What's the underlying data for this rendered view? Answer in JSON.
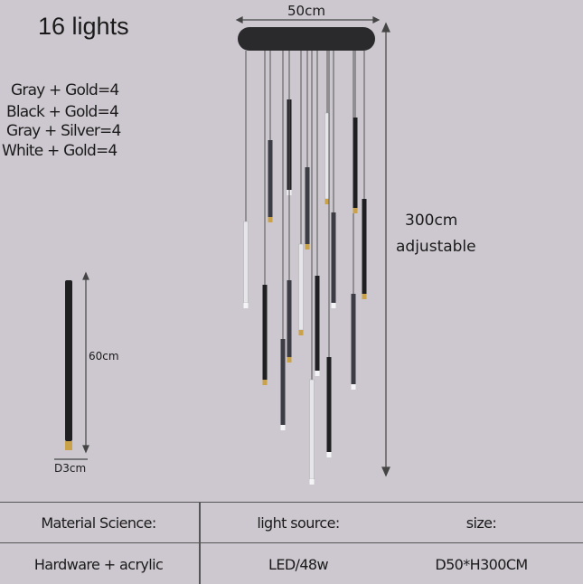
{
  "title": "16 lights",
  "color_combos": [
    "Gray + Gold=4",
    "Black + Gold=4",
    "Gray + Silver=4",
    "White + Gold=4"
  ],
  "dimensions": {
    "diameter": "50cm",
    "height": "300cm",
    "height_note": "adjustable",
    "rod_length": "60cm",
    "rod_diameter": "D3cm"
  },
  "colors": {
    "background": "#cdc8cf",
    "canopy": "#2a2a2c",
    "rod_black": "#1f1f22",
    "rod_gray": "#3c3d44",
    "rod_white": "#e6e6ea",
    "gold": "#c9a24a"
  },
  "spec_table": {
    "headers": [
      "Material Science:",
      "light source:",
      "size:"
    ],
    "values": [
      "Hardware + acrylic",
      "LED/48w",
      "D50*H300CM"
    ]
  }
}
